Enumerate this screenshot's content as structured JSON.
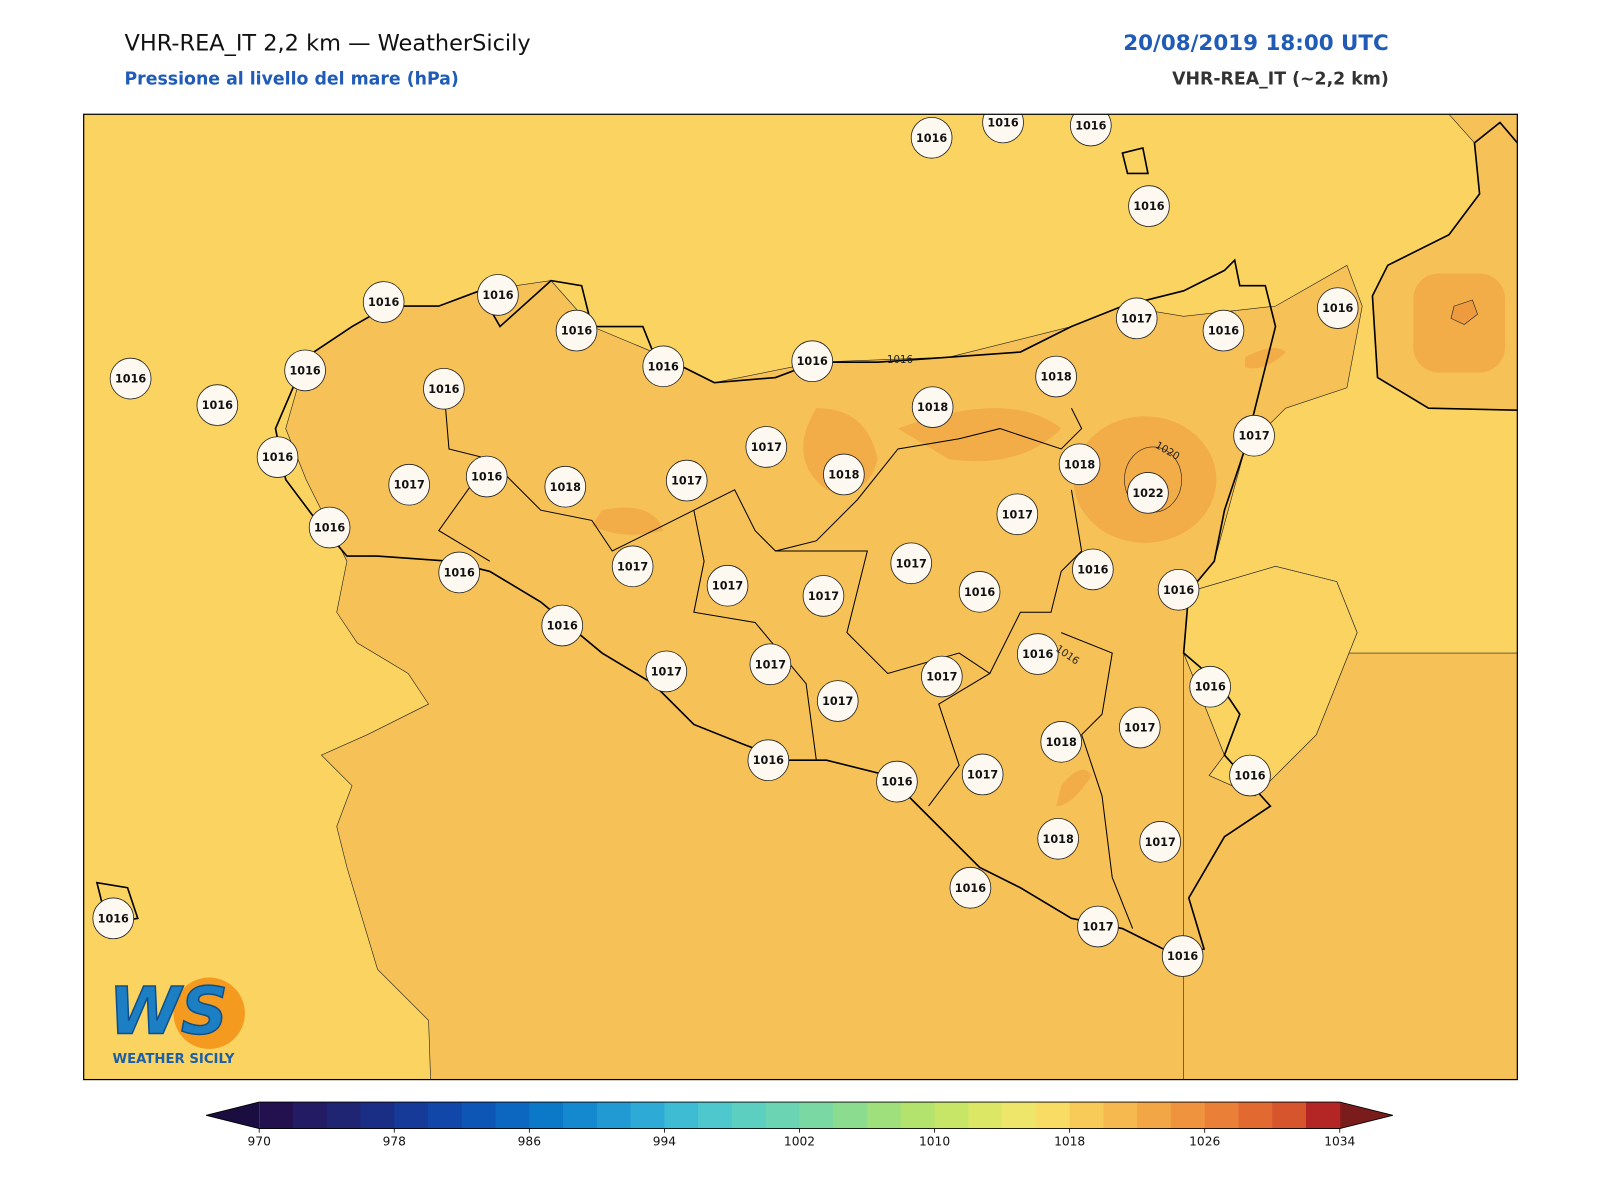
{
  "header": {
    "title": "VHR-REA_IT 2,2 km — WeatherSicily",
    "subtitle": "Pressione al livello del mare (hPa)",
    "datetime": "20/08/2019 18:00 UTC",
    "model": "VHR-REA_IT (~2,2 km)"
  },
  "stations": [
    1016,
    1016,
    1016,
    1016,
    1016,
    1016,
    1016,
    1016,
    1016,
    1016,
    1016,
    1016,
    1016,
    1017,
    1016,
    1016,
    1018,
    1018,
    1017,
    1017,
    1016,
    1017,
    1016,
    1018,
    1017,
    1018,
    1018,
    1022,
    1017,
    1016,
    1016,
    1017,
    1017,
    1017,
    1017,
    1016,
    1016,
    1016,
    1016,
    1016,
    1017,
    1017,
    1017,
    1016,
    1017,
    1017,
    1018,
    1016,
    1016,
    1017,
    1016,
    1018,
    1017,
    1016,
    1017,
    1016,
    1016
  ],
  "contour_labels": [
    "1016",
    "1016",
    "1020"
  ],
  "logo": {
    "mark": "WS",
    "text": "WEATHER SICILY"
  },
  "colorbar": {
    "range": [
      970,
      1034
    ],
    "ticks": [
      970,
      978,
      986,
      994,
      1002,
      1010,
      1018,
      1026,
      1034
    ],
    "under_color": "#1a0d40",
    "over_color": "#7b1c1c",
    "colors": [
      "#22104f",
      "#231b63",
      "#1f2473",
      "#1b2e85",
      "#163a98",
      "#1147a8",
      "#0e56b5",
      "#0b67bf",
      "#0c78c8",
      "#1589cf",
      "#2199d3",
      "#2eaad6",
      "#3ebcd4",
      "#4ec8cc",
      "#5dcfc0",
      "#6bd5b3",
      "#7ad9a2",
      "#8cdc8f",
      "#a0e07c",
      "#b3e36d",
      "#c7e566",
      "#dbe765",
      "#eee66a",
      "#f8dc63",
      "#f8ca58",
      "#f6b94f",
      "#f2a646",
      "#ef933e",
      "#ea7f37",
      "#e26a31",
      "#d6552d",
      "#b42626"
    ]
  }
}
